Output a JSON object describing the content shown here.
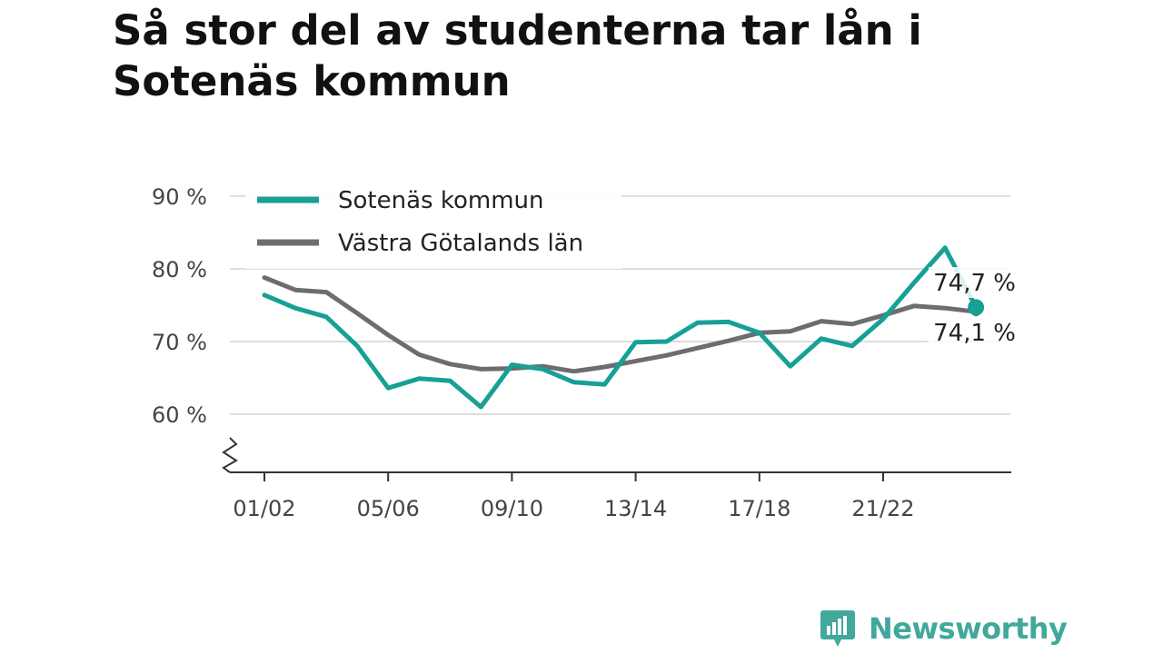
{
  "title": "Så stor del av studenterna tar lån i Sotenäs kommun",
  "brand": {
    "name": "Newsworthy",
    "color": "#41a89c"
  },
  "chart_data": {
    "type": "line",
    "title": "Så stor del av studenterna tar lån i Sotenäs kommun",
    "xlabel": "",
    "ylabel": "",
    "ylim": [
      52,
      90
    ],
    "y_ticks": [
      60,
      70,
      80,
      90
    ],
    "y_tick_labels": [
      "60 %",
      "70 %",
      "80 %",
      "90 %"
    ],
    "axis_break": true,
    "grid": true,
    "legend_position": "top-left",
    "x": [
      "01/02",
      "02/03",
      "03/04",
      "04/05",
      "05/06",
      "06/07",
      "07/08",
      "08/09",
      "09/10",
      "10/11",
      "11/12",
      "12/13",
      "13/14",
      "14/15",
      "15/16",
      "16/17",
      "17/18",
      "18/19",
      "19/20",
      "20/21",
      "21/22",
      "22/23",
      "23/24",
      "24/25"
    ],
    "x_tick_labels": [
      "01/02",
      "05/06",
      "09/10",
      "13/14",
      "17/18",
      "21/22"
    ],
    "series": [
      {
        "name": "Sotenäs kommun",
        "color": "#16a096",
        "values": [
          76.4,
          74.6,
          73.4,
          69.4,
          63.6,
          64.9,
          64.6,
          61.0,
          66.8,
          66.2,
          64.4,
          64.1,
          69.9,
          70.0,
          72.6,
          72.7,
          71.2,
          66.6,
          70.4,
          69.4,
          73.1,
          78.1,
          82.9,
          74.7
        ],
        "end_label": "74,7 %"
      },
      {
        "name": "Västra Götalands län",
        "color": "#6d6c70",
        "values": [
          78.8,
          77.1,
          76.8,
          73.9,
          70.9,
          68.2,
          66.9,
          66.2,
          66.3,
          66.6,
          65.9,
          66.5,
          67.3,
          68.1,
          69.1,
          70.1,
          71.2,
          71.4,
          72.8,
          72.4,
          73.6,
          74.9,
          74.6,
          74.1
        ],
        "end_label": "74,1 %"
      }
    ]
  }
}
